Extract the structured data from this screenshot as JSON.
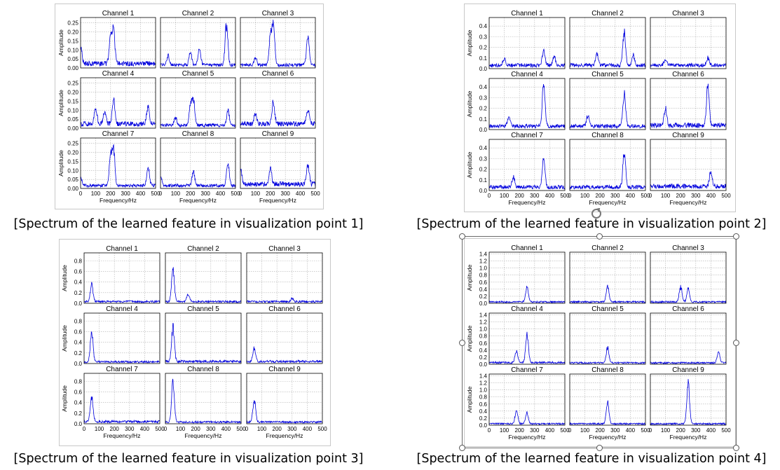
{
  "figures": [
    {
      "caption": "[Spectrum of the learned feature in visualization point 1]",
      "panels": [
        "Channel 1",
        "Channel 2",
        "Channel 3",
        "Channel 4",
        "Channel 5",
        "Channel 6",
        "Channel 7",
        "Channel 8",
        "Channel 9"
      ],
      "yticks": [
        "0.00",
        "0.05",
        "0.10",
        "0.15",
        "0.20",
        "0.25"
      ],
      "xticks": [
        "0",
        "100",
        "200",
        "300",
        "400",
        "500"
      ],
      "xlabel": "Frequency/Hz",
      "ylabel": "Amplitude"
    },
    {
      "caption": "[Spectrum of the learned feature in visualization point 2]",
      "panels": [
        "Channel 1",
        "Channel 2",
        "Channel 3",
        "Channel 4",
        "Channel 5",
        "Channel 6",
        "Channel 7",
        "Channel 8",
        "Channel 9"
      ],
      "yticks": [
        "0.0",
        "0.1",
        "0.2",
        "0.3",
        "0.4"
      ],
      "xticks": [
        "0",
        "100",
        "200",
        "300",
        "400",
        "500"
      ],
      "xlabel": "Frequency/Hz",
      "ylabel": "Amplitude"
    },
    {
      "caption": "[Spectrum of the learned feature in visualization point 3]",
      "panels": [
        "Channel 1",
        "Channel 2",
        "Channel 3",
        "Channel 4",
        "Channel 5",
        "Channel 6",
        "Channel 7",
        "Channel 8",
        "Channel 9"
      ],
      "yticks": [
        "0.0",
        "0.2",
        "0.4",
        "0.6",
        "0.8"
      ],
      "xticks": [
        "0",
        "100",
        "200",
        "300",
        "400",
        "500"
      ],
      "xlabel": "Frequency/Hz",
      "ylabel": "Amplitude"
    },
    {
      "caption": "[Spectrum of the learned feature in visualization point 4]",
      "panels": [
        "Channel 1",
        "Channel 2",
        "Channel 3",
        "Channel 4",
        "Channel 5",
        "Channel 6",
        "Channel 7",
        "Channel 8",
        "Channel 9"
      ],
      "yticks": [
        "0.0",
        "0.2",
        "0.4",
        "0.6",
        "0.8",
        "1.0",
        "1.2",
        "1.4"
      ],
      "xticks": [
        "0",
        "100",
        "200",
        "300",
        "400",
        "500"
      ],
      "xlabel": "Frequency/Hz",
      "ylabel": "Amplitude"
    }
  ],
  "chart_data": [
    {
      "type": "line",
      "title": "",
      "xlabel": "Frequency/Hz",
      "ylabel": "Amplitude",
      "xlim": [
        0,
        500
      ],
      "ylim": [
        0,
        0.28
      ],
      "grid": true,
      "line_color": "#0000dd",
      "series": [
        {
          "name": "Channel 1",
          "peaks": [
            [
              0,
              0.12
            ],
            [
              200,
              0.16
            ],
            [
              220,
              0.2
            ]
          ],
          "noise": 0.03
        },
        {
          "name": "Channel 2",
          "peaks": [
            [
              50,
              0.06
            ],
            [
              200,
              0.08
            ],
            [
              260,
              0.1
            ],
            [
              440,
              0.26
            ]
          ],
          "noise": 0.02
        },
        {
          "name": "Channel 3",
          "peaks": [
            [
              100,
              0.05
            ],
            [
              200,
              0.17
            ],
            [
              220,
              0.26
            ],
            [
              450,
              0.18
            ]
          ],
          "noise": 0.02
        },
        {
          "name": "Channel 4",
          "peaks": [
            [
              100,
              0.11
            ],
            [
              160,
              0.08
            ],
            [
              220,
              0.15
            ],
            [
              450,
              0.11
            ]
          ],
          "noise": 0.03
        },
        {
          "name": "Channel 5",
          "peaks": [
            [
              100,
              0.05
            ],
            [
              200,
              0.13
            ],
            [
              220,
              0.16
            ],
            [
              450,
              0.09
            ]
          ],
          "noise": 0.02
        },
        {
          "name": "Channel 6",
          "peaks": [
            [
              100,
              0.06
            ],
            [
              220,
              0.14
            ],
            [
              450,
              0.1
            ]
          ],
          "noise": 0.03
        },
        {
          "name": "Channel 7",
          "peaks": [
            [
              0,
              0.05
            ],
            [
              200,
              0.19
            ],
            [
              220,
              0.21
            ],
            [
              450,
              0.11
            ]
          ],
          "noise": 0.02
        },
        {
          "name": "Channel 8",
          "peaks": [
            [
              0,
              0.06
            ],
            [
              220,
              0.09
            ],
            [
              450,
              0.14
            ]
          ],
          "noise": 0.02
        },
        {
          "name": "Channel 9",
          "peaks": [
            [
              0,
              0.1
            ],
            [
              200,
              0.1
            ],
            [
              450,
              0.13
            ]
          ],
          "noise": 0.03
        }
      ]
    },
    {
      "type": "line",
      "title": "",
      "xlabel": "Frequency/Hz",
      "ylabel": "Amplitude",
      "xlim": [
        0,
        500
      ],
      "ylim": [
        0,
        0.48
      ],
      "grid": true,
      "line_color": "#0000dd",
      "series": [
        {
          "name": "Channel 1",
          "peaks": [
            [
              100,
              0.07
            ],
            [
              360,
              0.16
            ],
            [
              430,
              0.09
            ]
          ],
          "noise": 0.04
        },
        {
          "name": "Channel 2",
          "peaks": [
            [
              180,
              0.13
            ],
            [
              360,
              0.37
            ],
            [
              420,
              0.1
            ]
          ],
          "noise": 0.04
        },
        {
          "name": "Channel 3",
          "peaks": [
            [
              100,
              0.07
            ],
            [
              380,
              0.08
            ]
          ],
          "noise": 0.04
        },
        {
          "name": "Channel 4",
          "peaks": [
            [
              130,
              0.1
            ],
            [
              360,
              0.47
            ]
          ],
          "noise": 0.04
        },
        {
          "name": "Channel 5",
          "peaks": [
            [
              120,
              0.11
            ],
            [
              360,
              0.35
            ]
          ],
          "noise": 0.04
        },
        {
          "name": "Channel 6",
          "peaks": [
            [
              100,
              0.18
            ],
            [
              380,
              0.43
            ]
          ],
          "noise": 0.05
        },
        {
          "name": "Channel 7",
          "peaks": [
            [
              160,
              0.1
            ],
            [
              360,
              0.31
            ]
          ],
          "noise": 0.04
        },
        {
          "name": "Channel 8",
          "peaks": [
            [
              360,
              0.37
            ]
          ],
          "noise": 0.04
        },
        {
          "name": "Channel 9",
          "peaks": [
            [
              400,
              0.17
            ]
          ],
          "noise": 0.05
        }
      ]
    },
    {
      "type": "line",
      "title": "",
      "xlabel": "Frequency/Hz",
      "ylabel": "Amplitude",
      "xlim": [
        0,
        500
      ],
      "ylim": [
        0,
        0.95
      ],
      "grid": true,
      "line_color": "#0000dd",
      "series": [
        {
          "name": "Channel 1",
          "peaks": [
            [
              50,
              0.37
            ]
          ],
          "noise": 0.04
        },
        {
          "name": "Channel 2",
          "peaks": [
            [
              50,
              0.71
            ],
            [
              150,
              0.16
            ]
          ],
          "noise": 0.04
        },
        {
          "name": "Channel 3",
          "peaks": [
            [
              300,
              0.07
            ]
          ],
          "noise": 0.04
        },
        {
          "name": "Channel 4",
          "peaks": [
            [
              50,
              0.66
            ]
          ],
          "noise": 0.04
        },
        {
          "name": "Channel 5",
          "peaks": [
            [
              50,
              0.75
            ]
          ],
          "noise": 0.05
        },
        {
          "name": "Channel 6",
          "peaks": [
            [
              50,
              0.29
            ]
          ],
          "noise": 0.05
        },
        {
          "name": "Channel 7",
          "peaks": [
            [
              50,
              0.53
            ]
          ],
          "noise": 0.05
        },
        {
          "name": "Channel 8",
          "peaks": [
            [
              50,
              0.89
            ]
          ],
          "noise": 0.04
        },
        {
          "name": "Channel 9",
          "peaks": [
            [
              50,
              0.47
            ]
          ],
          "noise": 0.04
        }
      ]
    },
    {
      "type": "line",
      "title": "",
      "xlabel": "Frequency/Hz",
      "ylabel": "Amplitude",
      "xlim": [
        0,
        500
      ],
      "ylim": [
        0,
        1.45
      ],
      "grid": true,
      "line_color": "#0000dd",
      "series": [
        {
          "name": "Channel 1",
          "peaks": [
            [
              250,
              0.49
            ]
          ],
          "noise": 0.05
        },
        {
          "name": "Channel 2",
          "peaks": [
            [
              250,
              0.52
            ]
          ],
          "noise": 0.05
        },
        {
          "name": "Channel 3",
          "peaks": [
            [
              200,
              0.48
            ],
            [
              250,
              0.42
            ]
          ],
          "noise": 0.05
        },
        {
          "name": "Channel 4",
          "peaks": [
            [
              180,
              0.37
            ],
            [
              250,
              0.92
            ]
          ],
          "noise": 0.06
        },
        {
          "name": "Channel 5",
          "peaks": [
            [
              250,
              0.51
            ]
          ],
          "noise": 0.05
        },
        {
          "name": "Channel 6",
          "peaks": [
            [
              450,
              0.34
            ]
          ],
          "noise": 0.05
        },
        {
          "name": "Channel 7",
          "peaks": [
            [
              180,
              0.43
            ],
            [
              250,
              0.36
            ]
          ],
          "noise": 0.05
        },
        {
          "name": "Channel 8",
          "peaks": [
            [
              250,
              0.71
            ]
          ],
          "noise": 0.05
        },
        {
          "name": "Channel 9",
          "peaks": [
            [
              250,
              1.33
            ]
          ],
          "noise": 0.05
        }
      ]
    }
  ]
}
